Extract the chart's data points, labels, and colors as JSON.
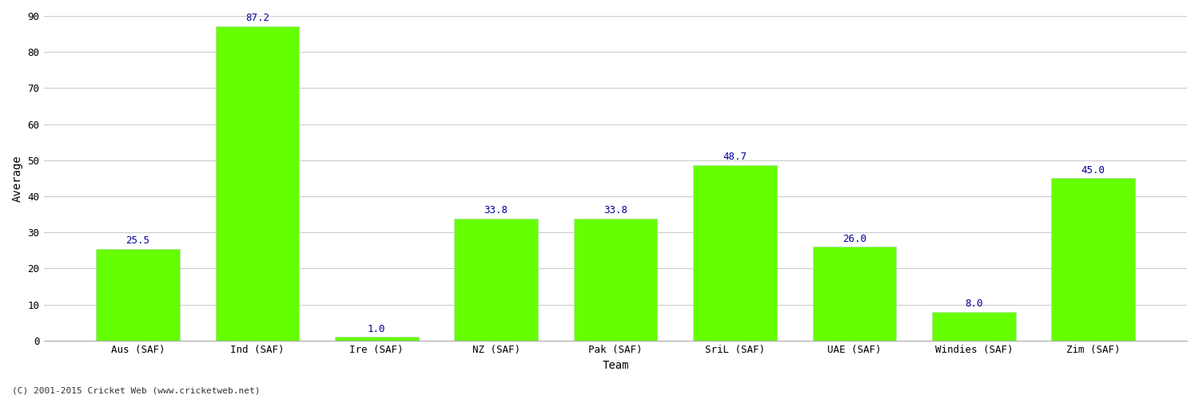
{
  "categories": [
    "Aus (SAF)",
    "Ind (SAF)",
    "Ire (SAF)",
    "NZ (SAF)",
    "Pak (SAF)",
    "SriL (SAF)",
    "UAE (SAF)",
    "Windies (SAF)",
    "Zim (SAF)"
  ],
  "values": [
    25.5,
    87.2,
    1.0,
    33.8,
    33.8,
    48.7,
    26.0,
    8.0,
    45.0
  ],
  "bar_color": "#66ff00",
  "bar_edge_color": "#aaddaa",
  "label_color": "#000099",
  "xlabel": "Team",
  "ylabel": "Average",
  "ylim": [
    0,
    90
  ],
  "yticks": [
    0,
    10,
    20,
    30,
    40,
    50,
    60,
    70,
    80,
    90
  ],
  "grid_color": "#cccccc",
  "background_color": "#ffffff",
  "plot_bg_color": "#ffffff",
  "footer_text": "(C) 2001-2015 Cricket Web (www.cricketweb.net)",
  "label_fontsize": 9,
  "tick_label_fontsize": 9,
  "axis_label_fontsize": 10,
  "bar_width": 0.7
}
